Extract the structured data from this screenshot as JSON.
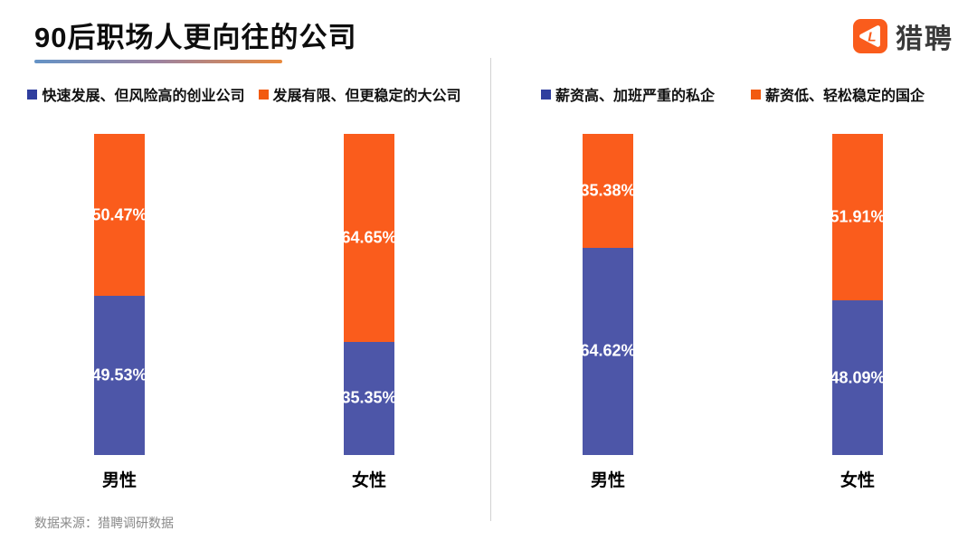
{
  "header": {
    "title": "90后职场人更向往的公司",
    "logo_text": "猎聘",
    "logo_monogram": "L",
    "brand_color": "#FA5C1C"
  },
  "footer": {
    "source": "数据来源：猎聘调研数据"
  },
  "colors": {
    "series_blue": "#4D56A8",
    "series_blue_marker": "#2F3E9E",
    "series_orange": "#FA5C1C",
    "series_orange_marker": "#F25A10",
    "value_label": "#FFFFFF",
    "divider": "#D2D2D2"
  },
  "chart_data": [
    {
      "type": "bar",
      "subtype": "stacked-percent",
      "title": "",
      "xlabel": "",
      "ylabel": "",
      "ylim": [
        0,
        100
      ],
      "grid": false,
      "legend_position": "top",
      "categories": [
        "男性",
        "女性"
      ],
      "series": [
        {
          "name": "快速发展、但风险高的创业公司",
          "color": "#4D56A8",
          "marker_color": "#2F3E9E",
          "stack_order": "bottom",
          "values": [
            49.53,
            35.35
          ]
        },
        {
          "name": "发展有限、但更稳定的大公司",
          "color": "#FA5C1C",
          "marker_color": "#F25A10",
          "stack_order": "top",
          "values": [
            50.47,
            64.65
          ]
        }
      ],
      "value_label_suffix": "%"
    },
    {
      "type": "bar",
      "subtype": "stacked-percent",
      "title": "",
      "xlabel": "",
      "ylabel": "",
      "ylim": [
        0,
        100
      ],
      "grid": false,
      "legend_position": "top",
      "categories": [
        "男性",
        "女性"
      ],
      "series": [
        {
          "name": "薪资高、加班严重的私企",
          "color": "#4D56A8",
          "marker_color": "#2F3E9E",
          "stack_order": "bottom",
          "values": [
            64.62,
            48.09
          ]
        },
        {
          "name": "薪资低、轻松稳定的国企",
          "color": "#FA5C1C",
          "marker_color": "#F25A10",
          "stack_order": "top",
          "values": [
            35.38,
            51.91
          ]
        }
      ],
      "value_label_suffix": "%"
    }
  ]
}
